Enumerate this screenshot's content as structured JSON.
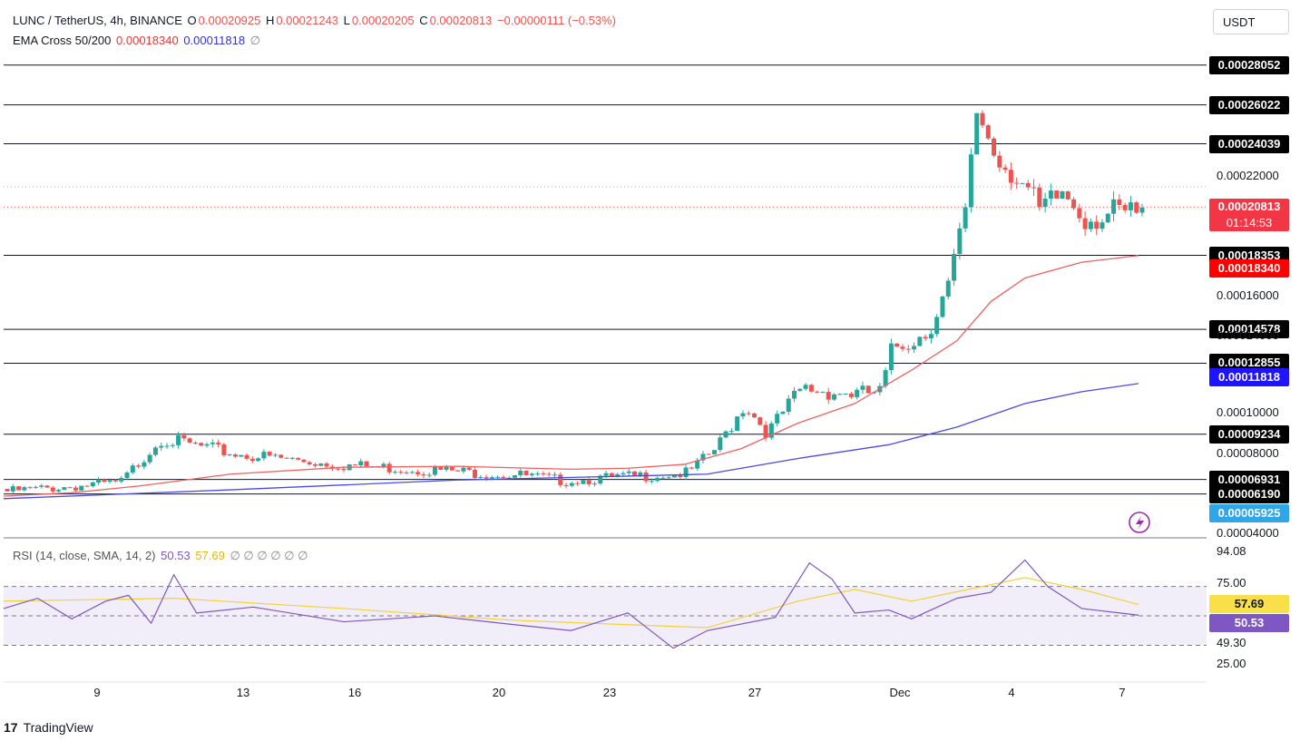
{
  "header": {
    "symbol": "LUNC / TetherUS, 4h, BINANCE",
    "open_label": "O",
    "open": "0.00020925",
    "high_label": "H",
    "high": "0.00021243",
    "low_label": "L",
    "low": "0.00020205",
    "close_label": "C",
    "close": "0.00020813",
    "change": "−0.00000111 (−0.53%)",
    "ema_label": "EMA Cross 50/200",
    "ema50": "0.00018340",
    "ema200": "0.00011818",
    "ema_null": "∅",
    "rsi_label": "RSI (14, close, SMA, 14, 2)",
    "rsi_value": "50.53",
    "rsi_sma": "57.69",
    "rsi_nulls": "∅ ∅ ∅ ∅ ∅ ∅"
  },
  "currency_button": "USDT",
  "countdown": "01:14:53",
  "brand": "TradingView",
  "colors": {
    "up": "#26a69a",
    "down": "#ef5350",
    "ema50": "#f06060",
    "ema200": "#4a4ae8",
    "rsi": "#7e57c2",
    "rsi_sma": "#f2d23b"
  },
  "chart_data": {
    "type": "candlestick",
    "x_ticks": [
      "9",
      "13",
      "16",
      "20",
      "23",
      "27",
      "Dec",
      "4",
      "7"
    ],
    "price_axis_ticks": [
      "0.00022000",
      "0.00016000",
      "0.00014000",
      "0.00010000",
      "0.00008000",
      "0.00004000"
    ],
    "ylim": [
      4e-05,
      0.000285
    ],
    "horizontal_levels": [
      0.00028052,
      0.00026022,
      0.00024039,
      0.00018353,
      0.00014578,
      0.00012855,
      9.234e-05,
      6.931e-05,
      6.19e-05
    ],
    "level_labels": [
      "0.00028052",
      "0.00026022",
      "0.00024039",
      "0.00018353",
      "0.00014578",
      "0.00012855",
      "0.00009234",
      "0.00006931",
      "0.00006190"
    ],
    "current_price": "0.00020813",
    "ema50_label": "0.00018340",
    "ema200_label": "0.00011818",
    "extra_label": "0.00005925",
    "ema50_path": [
      [
        0,
        6.08e-05
      ],
      [
        0.06,
        6.25e-05
      ],
      [
        0.12,
        6.6e-05
      ],
      [
        0.2,
        7.2e-05
      ],
      [
        0.3,
        7.55e-05
      ],
      [
        0.4,
        7.6e-05
      ],
      [
        0.5,
        7.45e-05
      ],
      [
        0.55,
        7.5e-05
      ],
      [
        0.6,
        7.7e-05
      ],
      [
        0.65,
        8.5e-05
      ],
      [
        0.7,
        9.8e-05
      ],
      [
        0.75,
        0.000108
      ],
      [
        0.8,
        0.000125
      ],
      [
        0.84,
        0.00014
      ],
      [
        0.87,
        0.00016
      ],
      [
        0.9,
        0.000172
      ],
      [
        0.95,
        0.00018
      ],
      [
        1,
        0.0001834
      ]
    ],
    "ema200_path": [
      [
        0,
        5.95e-05
      ],
      [
        0.2,
        6.4e-05
      ],
      [
        0.4,
        6.9e-05
      ],
      [
        0.55,
        7.1e-05
      ],
      [
        0.62,
        7.2e-05
      ],
      [
        0.7,
        8e-05
      ],
      [
        0.78,
        8.7e-05
      ],
      [
        0.84,
        9.6e-05
      ],
      [
        0.9,
        0.000108
      ],
      [
        0.95,
        0.000114
      ],
      [
        1,
        0.0001182
      ]
    ],
    "rsi": {
      "current": "50.53",
      "sma": "57.69",
      "ticks": [
        "94.08",
        "75.00",
        "49.30",
        "25.00"
      ],
      "upper_band": 70,
      "lower_band": 30,
      "mid": 50
    }
  }
}
